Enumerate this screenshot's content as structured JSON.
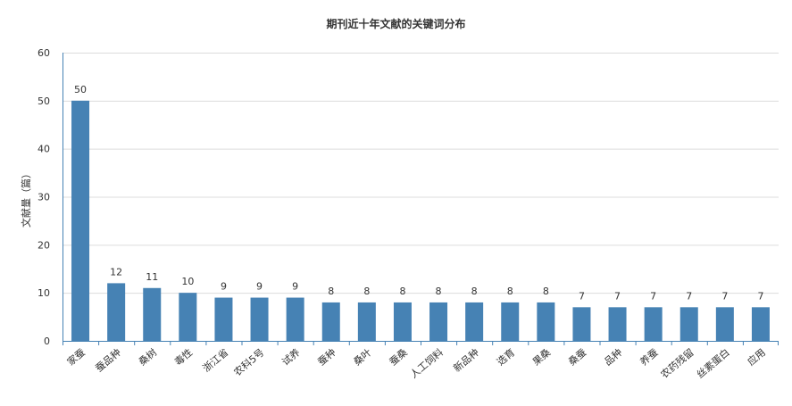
{
  "chart_data": {
    "type": "bar",
    "title": "期刊近十年文献的关键词分布",
    "xlabel": "",
    "ylabel": "文献量（篇）",
    "ylim": [
      0,
      60
    ],
    "yticks": [
      0,
      10,
      20,
      30,
      40,
      50,
      60
    ],
    "grid": true,
    "bar_color": "#4682B4",
    "categories": [
      "家蚕",
      "蚕品种",
      "桑树",
      "毒性",
      "浙江省",
      "农科5号",
      "试养",
      "蚕种",
      "桑叶",
      "蚕桑",
      "人工饲料",
      "新品种",
      "选育",
      "果桑",
      "桑蚕",
      "品种",
      "养蚕",
      "农药残留",
      "丝素蛋白",
      "应用"
    ],
    "values": [
      50,
      12,
      11,
      10,
      9,
      9,
      9,
      8,
      8,
      8,
      8,
      8,
      8,
      8,
      7,
      7,
      7,
      7,
      7,
      7
    ]
  }
}
